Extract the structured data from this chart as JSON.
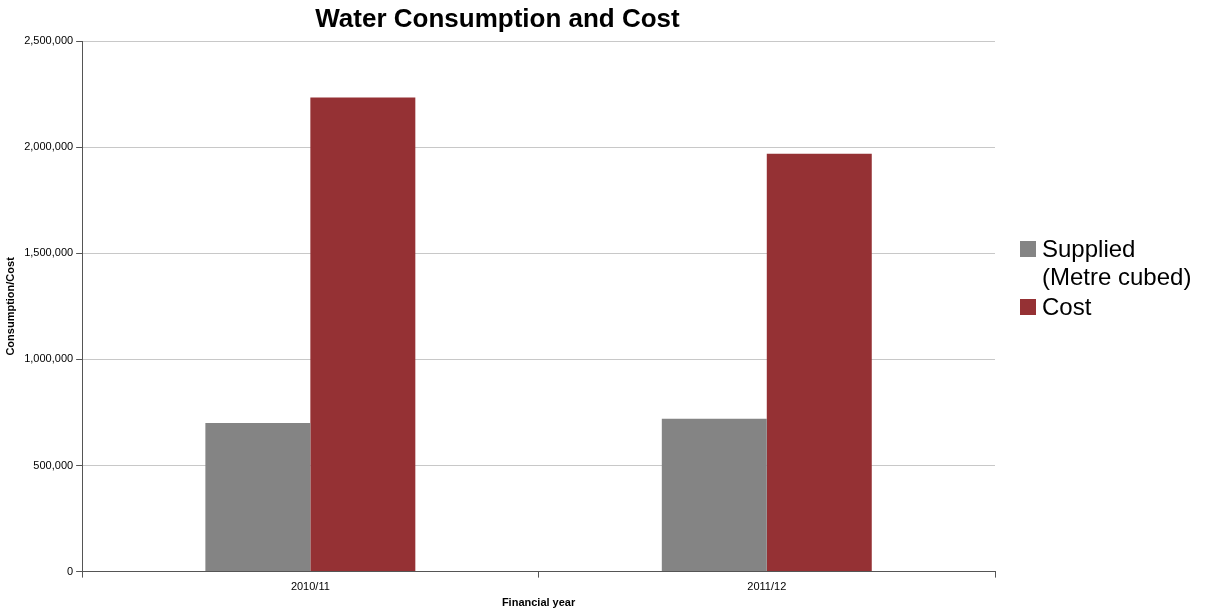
{
  "chart_data": {
    "type": "bar",
    "title": "Water Consumption and Cost",
    "xlabel": "Financial year",
    "ylabel": "Consumption/Cost",
    "categories": [
      "2010/11",
      "2011/12"
    ],
    "series": [
      {
        "name": "Supplied (Metre cubed)",
        "color": "#848484",
        "values": [
          700000,
          720000
        ]
      },
      {
        "name": "Cost",
        "color": "#953134",
        "values": [
          2235000,
          1970000
        ]
      }
    ],
    "ylim": [
      0,
      2500000
    ],
    "yticks": [
      0,
      {
        "value": 500000,
        "label": "500,000"
      },
      {
        "value": 1000000,
        "label": "1,000,000"
      },
      {
        "value": 1500000,
        "label": "1,500,000"
      },
      {
        "value": 2000000,
        "label": "2,000,000"
      },
      {
        "value": 2500000,
        "label": "2,500,000"
      }
    ],
    "grid": "y",
    "legend": "right"
  }
}
